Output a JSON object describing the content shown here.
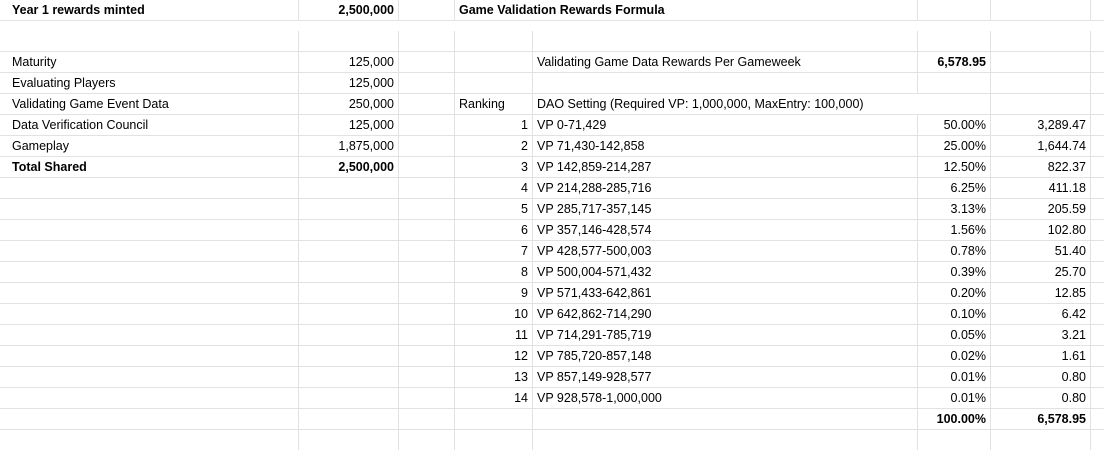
{
  "left": {
    "header": {
      "label": "Year 1 rewards minted",
      "value": "2,500,000"
    },
    "items": [
      {
        "label": "Maturity",
        "value": "125,000"
      },
      {
        "label": "Evaluating Players",
        "value": "125,000"
      },
      {
        "label": "Validating Game Event Data",
        "value": "250,000"
      },
      {
        "label": "Data Verification Council",
        "value": "125,000"
      },
      {
        "label": "Gameplay",
        "value": "1,875,000"
      }
    ],
    "total": {
      "label": "Total Shared",
      "value": "2,500,000"
    }
  },
  "right": {
    "title": "Game Validation Rewards Formula",
    "per_gameweek_label": "Validating Game Data Rewards Per Gameweek",
    "per_gameweek_value": "6,578.95",
    "ranking_label": "Ranking",
    "dao_setting": "DAO Setting (Required VP: 1,000,000, MaxEntry: 100,000)",
    "ranks": [
      {
        "rank": "1",
        "range": "VP 0-71,429",
        "pct": "50.00%",
        "reward": "3,289.47"
      },
      {
        "rank": "2",
        "range": "VP 71,430-142,858",
        "pct": "25.00%",
        "reward": "1,644.74"
      },
      {
        "rank": "3",
        "range": "VP 142,859-214,287",
        "pct": "12.50%",
        "reward": "822.37"
      },
      {
        "rank": "4",
        "range": "VP 214,288-285,716",
        "pct": "6.25%",
        "reward": "411.18"
      },
      {
        "rank": "5",
        "range": "VP 285,717-357,145",
        "pct": "3.13%",
        "reward": "205.59"
      },
      {
        "rank": "6",
        "range": "VP 357,146-428,574",
        "pct": "1.56%",
        "reward": "102.80"
      },
      {
        "rank": "7",
        "range": "VP 428,577-500,003",
        "pct": "0.78%",
        "reward": "51.40"
      },
      {
        "rank": "8",
        "range": "VP 500,004-571,432",
        "pct": "0.39%",
        "reward": "25.70"
      },
      {
        "rank": "9",
        "range": "VP 571,433-642,861",
        "pct": "0.20%",
        "reward": "12.85"
      },
      {
        "rank": "10",
        "range": "VP 642,862-714,290",
        "pct": "0.10%",
        "reward": "6.42"
      },
      {
        "rank": "11",
        "range": "VP 714,291-785,719",
        "pct": "0.05%",
        "reward": "3.21"
      },
      {
        "rank": "12",
        "range": "VP 785,720-857,148",
        "pct": "0.02%",
        "reward": "1.61"
      },
      {
        "rank": "13",
        "range": "VP 857,149-928,577",
        "pct": "0.01%",
        "reward": "0.80"
      },
      {
        "rank": "14",
        "range": "VP 928,578-1,000,000",
        "pct": "0.01%",
        "reward": "0.80"
      }
    ],
    "total_pct": "100.00%",
    "total_reward": "6,578.95"
  }
}
